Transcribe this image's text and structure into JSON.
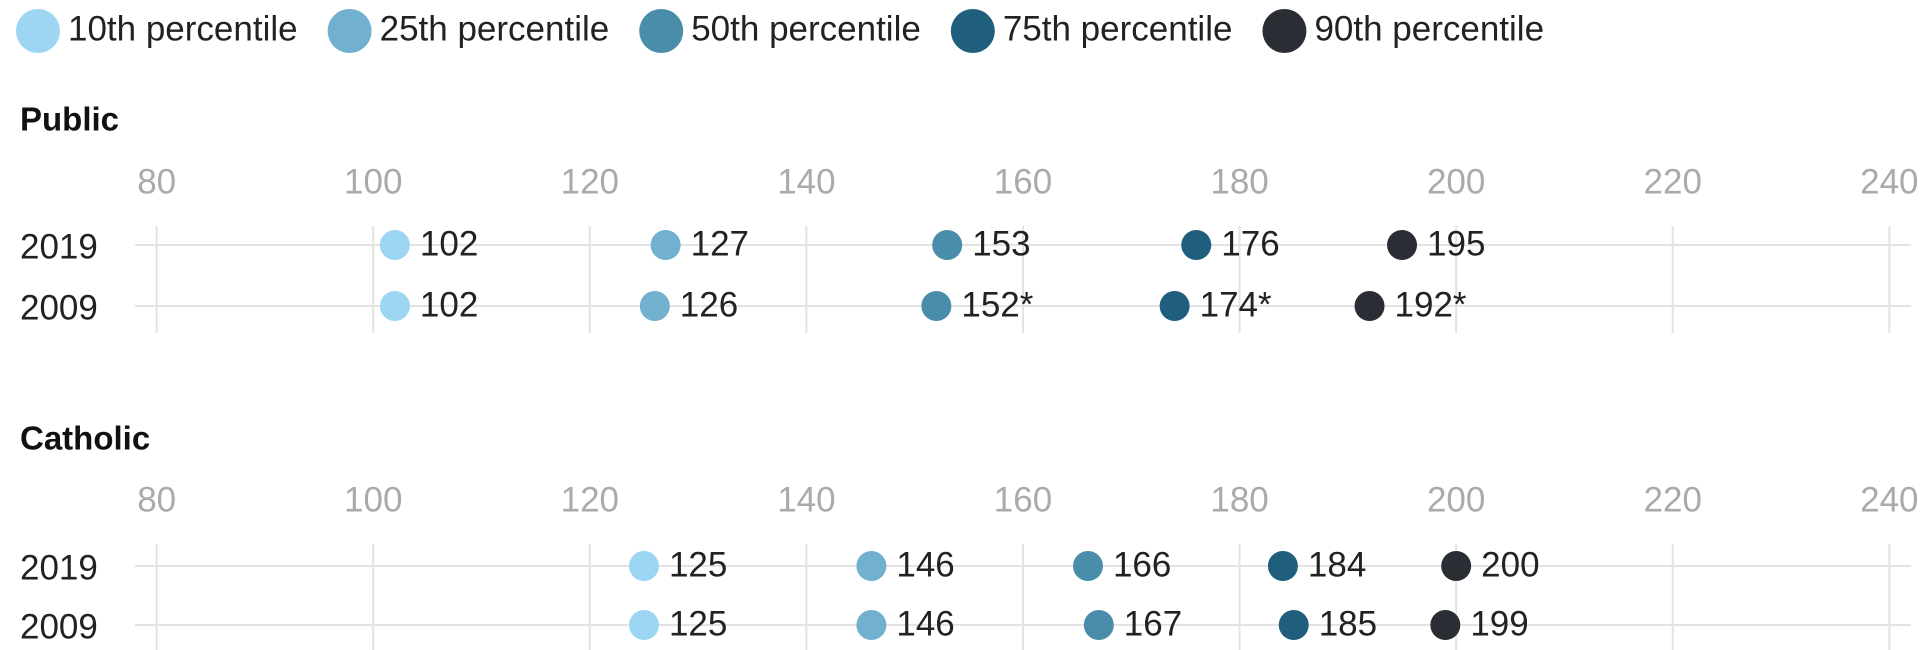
{
  "chart_data": [
    {
      "type": "dot",
      "title": "Public",
      "categories": [
        "2019",
        "2009"
      ],
      "xlim": [
        78,
        242
      ],
      "xticks": [
        80,
        100,
        120,
        140,
        160,
        180,
        200,
        220,
        240
      ],
      "grid": true,
      "series": [
        {
          "name": "10th percentile",
          "color": "#9dd6f3",
          "values": [
            102,
            102
          ]
        },
        {
          "name": "25th percentile",
          "color": "#72b0d0",
          "values": [
            127,
            126
          ]
        },
        {
          "name": "50th percentile",
          "color": "#4a8dab",
          "values": [
            153,
            152
          ],
          "value_labels": [
            "153",
            "152*"
          ]
        },
        {
          "name": "75th percentile",
          "color": "#1f5f7d",
          "values": [
            176,
            174
          ],
          "value_labels": [
            "176",
            "174*"
          ]
        },
        {
          "name": "90th percentile",
          "color": "#2a2d33",
          "values": [
            195,
            192
          ],
          "value_labels": [
            "195",
            "192*"
          ]
        }
      ]
    },
    {
      "type": "dot",
      "title": "Catholic",
      "categories": [
        "2019",
        "2009"
      ],
      "xlim": [
        78,
        242
      ],
      "xticks": [
        80,
        100,
        120,
        140,
        160,
        180,
        200,
        220,
        240
      ],
      "grid": true,
      "series": [
        {
          "color": "#9dd6f3",
          "values": [
            125,
            125
          ]
        },
        {
          "color": "#72b0d0",
          "values": [
            146,
            146
          ]
        },
        {
          "color": "#4a8dab",
          "values": [
            166,
            167
          ]
        },
        {
          "color": "#1f5f7d",
          "values": [
            184,
            185
          ]
        },
        {
          "color": "#2a2d33",
          "values": [
            200,
            199
          ]
        }
      ]
    }
  ]
}
